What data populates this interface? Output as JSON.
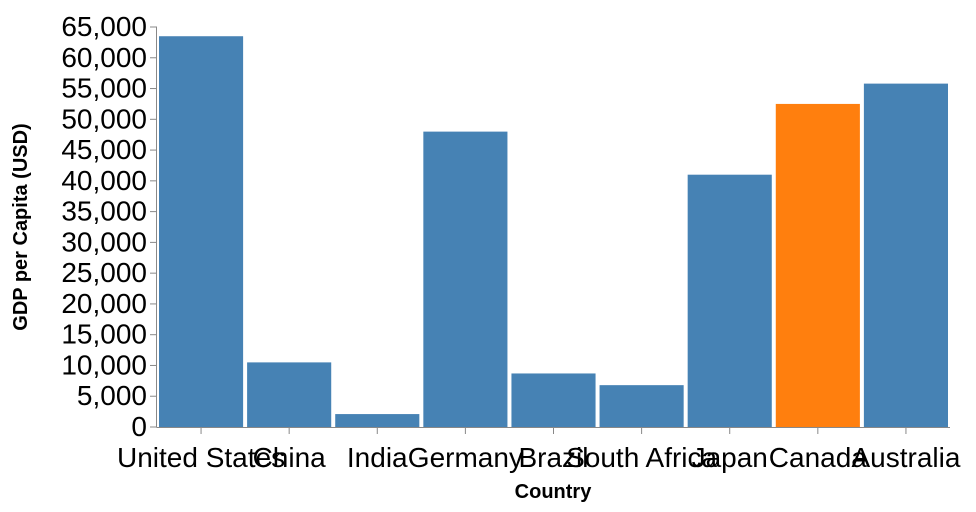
{
  "chart_data": {
    "type": "bar",
    "title": "",
    "xlabel": "Country",
    "ylabel": "GDP per Capita (USD)",
    "categories": [
      "United States",
      "China",
      "India",
      "Germany",
      "Brazil",
      "South Africa",
      "Japan",
      "Canada",
      "Australia"
    ],
    "values": [
      63500,
      10500,
      2100,
      48000,
      8700,
      6800,
      41000,
      52500,
      55800
    ],
    "highlight_category": "Canada",
    "ylim": [
      0,
      65000
    ],
    "yticks": [
      0,
      5000,
      10000,
      15000,
      20000,
      25000,
      30000,
      35000,
      40000,
      45000,
      50000,
      55000,
      60000,
      65000
    ],
    "ytick_labels": [
      "0",
      "5,000",
      "10,000",
      "15,000",
      "20,000",
      "25,000",
      "30,000",
      "35,000",
      "40,000",
      "45,000",
      "50,000",
      "55,000",
      "60,000",
      "65,000"
    ],
    "grid": false,
    "legend": "none",
    "colors": {
      "bar": "#4682b4",
      "highlight": "#ff7f0e",
      "axis": "#888888"
    }
  }
}
